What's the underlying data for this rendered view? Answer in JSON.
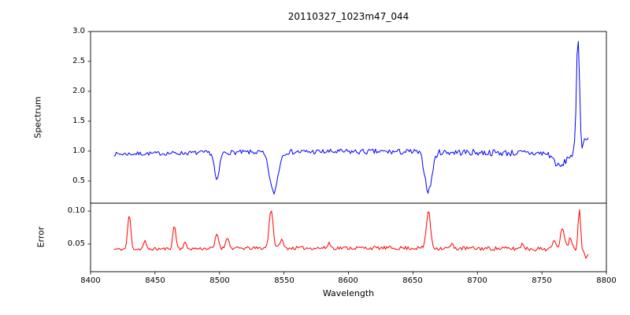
{
  "chart_data": {
    "type": "line",
    "title": "20110327_1023m47_044",
    "xlabel": "Wavelength",
    "grid": false,
    "legend": false,
    "xlim": [
      8400,
      8800
    ],
    "x_ticks": [
      "8400",
      "8450",
      "8500",
      "8550",
      "8600",
      "8650",
      "8700",
      "8750",
      "8800"
    ],
    "panels": [
      {
        "name": "spectrum",
        "ylabel": "Spectrum",
        "color": "#0000ff",
        "ylim": [
          0.13,
          3.0
        ],
        "y_ticks": [
          "3.0",
          "2.5",
          "2.0",
          "1.5",
          "1.0",
          "0.5"
        ],
        "series": {
          "x_start": 8418,
          "x_end": 8786,
          "n_points": 380,
          "baseline": 0.95,
          "curve": 0.04,
          "noise_amp": 0.032,
          "noise_ramp": 0.9,
          "seed": 7,
          "features": [
            {
              "c": 8498,
              "w": 1.8,
              "a": -0.48
            },
            {
              "c": 8542,
              "w": 3.2,
              "a": -0.68
            },
            {
              "c": 8662,
              "w": 2.8,
              "a": -0.65
            },
            {
              "c": 8764,
              "w": 4.0,
              "a": -0.22
            },
            {
              "c": 8778,
              "w": 1.2,
              "a": 1.95
            },
            {
              "c": 8785,
              "w": 2.5,
              "a": 0.3
            }
          ]
        }
      },
      {
        "name": "error",
        "ylabel": "Error",
        "color": "#ff0000",
        "ylim": [
          0.008,
          0.112
        ],
        "y_ticks": [
          "0.10",
          "0.05"
        ],
        "series": {
          "x_start": 8418,
          "x_end": 8786,
          "n_points": 380,
          "baseline": 0.042,
          "curve": 0.002,
          "noise_amp": 0.0022,
          "noise_ramp": 0.5,
          "seed": 11,
          "features": [
            {
              "c": 8430,
              "w": 1.2,
              "a": 0.052
            },
            {
              "c": 8442,
              "w": 1.0,
              "a": 0.012
            },
            {
              "c": 8465,
              "w": 1.2,
              "a": 0.035
            },
            {
              "c": 8473,
              "w": 1.0,
              "a": 0.01
            },
            {
              "c": 8498,
              "w": 1.3,
              "a": 0.022
            },
            {
              "c": 8506,
              "w": 1.2,
              "a": 0.018
            },
            {
              "c": 8540,
              "w": 1.5,
              "a": 0.06
            },
            {
              "c": 8548,
              "w": 1.2,
              "a": 0.014
            },
            {
              "c": 8585,
              "w": 1.0,
              "a": 0.008
            },
            {
              "c": 8662,
              "w": 1.6,
              "a": 0.056
            },
            {
              "c": 8680,
              "w": 1.0,
              "a": 0.006
            },
            {
              "c": 8735,
              "w": 1.2,
              "a": 0.008
            },
            {
              "c": 8760,
              "w": 1.5,
              "a": 0.012
            },
            {
              "c": 8766,
              "w": 1.5,
              "a": 0.034
            },
            {
              "c": 8772,
              "w": 1.2,
              "a": 0.02
            },
            {
              "c": 8779,
              "w": 1.0,
              "a": 0.062
            },
            {
              "c": 8784,
              "w": 1.5,
              "a": -0.012
            }
          ]
        }
      }
    ]
  }
}
